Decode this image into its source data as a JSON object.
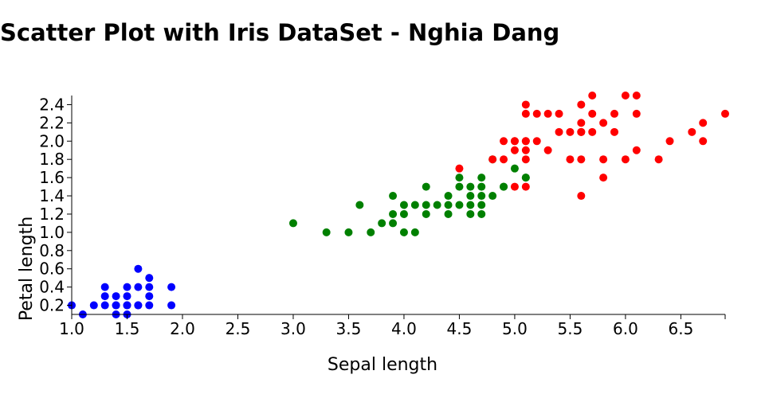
{
  "chart_data": {
    "type": "scatter",
    "title": "Scatter Plot with Iris DataSet - Nghia Dang",
    "xlabel": "Sepal length",
    "ylabel": "Petal length",
    "xlim": [
      1.0,
      6.9
    ],
    "ylim": [
      0.1,
      2.5
    ],
    "x_ticks": [
      1.0,
      1.5,
      2.0,
      2.5,
      3.0,
      3.5,
      4.0,
      4.5,
      5.0,
      5.5,
      6.0,
      6.5
    ],
    "y_ticks": [
      0.2,
      0.4,
      0.6,
      0.8,
      1.0,
      1.2,
      1.4,
      1.6,
      1.8,
      2.0,
      2.2,
      2.4
    ],
    "grid": false,
    "legend": "none",
    "series": [
      {
        "color": "#0000ff",
        "x": [
          1.0,
          1.1,
          1.2,
          1.3,
          1.3,
          1.3,
          1.4,
          1.4,
          1.4,
          1.4,
          1.5,
          1.5,
          1.5,
          1.5,
          1.5,
          1.6,
          1.6,
          1.6,
          1.6,
          1.7,
          1.7,
          1.7,
          1.7,
          1.9,
          1.9
        ],
        "y": [
          0.2,
          0.1,
          0.2,
          0.2,
          0.3,
          0.4,
          0.1,
          0.2,
          0.3,
          0.2,
          0.1,
          0.2,
          0.3,
          0.4,
          0.2,
          0.2,
          0.4,
          0.6,
          0.2,
          0.2,
          0.3,
          0.4,
          0.5,
          0.2,
          0.4
        ]
      },
      {
        "color": "#008000",
        "x": [
          3.0,
          3.3,
          3.5,
          3.6,
          3.7,
          3.8,
          3.9,
          3.9,
          3.9,
          4.0,
          4.0,
          4.0,
          4.1,
          4.1,
          4.2,
          4.2,
          4.2,
          4.3,
          4.4,
          4.4,
          4.4,
          4.5,
          4.5,
          4.5,
          4.6,
          4.6,
          4.6,
          4.6,
          4.7,
          4.7,
          4.7,
          4.7,
          4.7,
          4.8,
          4.8,
          4.9,
          4.9,
          5.0,
          5.1,
          5.1
        ],
        "y": [
          1.1,
          1.0,
          1.0,
          1.3,
          1.0,
          1.1,
          1.1,
          1.2,
          1.4,
          1.0,
          1.2,
          1.3,
          1.0,
          1.3,
          1.2,
          1.3,
          1.5,
          1.3,
          1.2,
          1.3,
          1.4,
          1.3,
          1.5,
          1.6,
          1.3,
          1.4,
          1.5,
          1.2,
          1.2,
          1.4,
          1.5,
          1.6,
          1.3,
          1.4,
          1.8,
          1.5,
          1.5,
          1.7,
          1.6,
          1.6
        ]
      },
      {
        "color": "#ff0000",
        "x": [
          4.5,
          4.8,
          4.9,
          4.9,
          5.0,
          5.0,
          5.0,
          5.0,
          5.1,
          5.1,
          5.1,
          5.1,
          5.1,
          5.1,
          5.1,
          5.2,
          5.2,
          5.3,
          5.3,
          5.4,
          5.4,
          5.5,
          5.5,
          5.6,
          5.6,
          5.6,
          5.6,
          5.6,
          5.6,
          5.7,
          5.7,
          5.7,
          5.8,
          5.8,
          5.8,
          5.9,
          5.9,
          6.0,
          6.0,
          6.1,
          6.1,
          6.1,
          6.3,
          6.4,
          6.6,
          6.7,
          6.7,
          6.9
        ],
        "y": [
          1.7,
          1.8,
          1.8,
          2.0,
          1.5,
          1.9,
          2.0,
          2.0,
          1.5,
          1.8,
          1.9,
          2.0,
          2.3,
          2.4,
          2.0,
          2.0,
          2.3,
          1.9,
          2.3,
          2.1,
          2.3,
          1.8,
          2.1,
          1.4,
          1.8,
          2.1,
          2.2,
          2.4,
          2.1,
          2.1,
          2.3,
          2.5,
          1.6,
          1.8,
          2.2,
          2.1,
          2.3,
          1.8,
          2.5,
          1.9,
          2.3,
          2.5,
          1.8,
          2.0,
          2.1,
          2.0,
          2.2,
          2.3
        ]
      }
    ]
  }
}
